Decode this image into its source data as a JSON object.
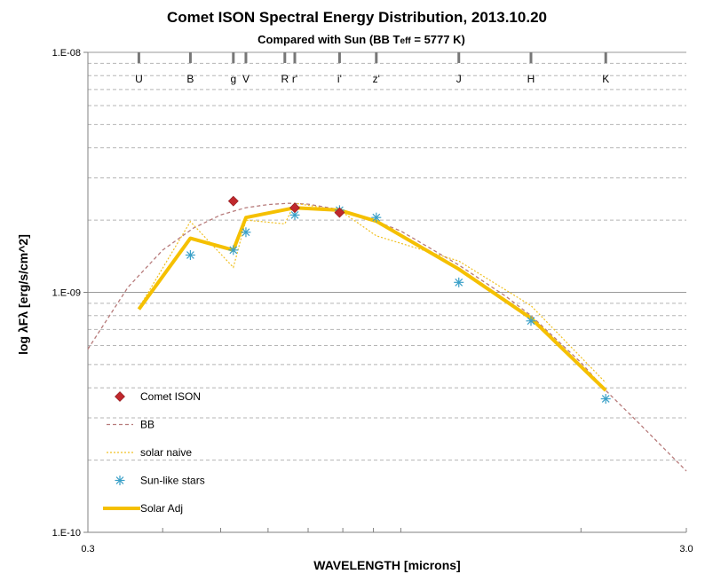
{
  "chart_data": {
    "type": "line",
    "title": "Comet ISON Spectral Energy Distribution,  2013.10.20",
    "subtitle": "Compared with Sun (BB Teff = 5777 K)",
    "subtitle_parts": [
      "Compared with Sun (BB T",
      "eff",
      " = 5777 K)"
    ],
    "xlabel": "WAVELENGTH [microns]",
    "ylabel": "log λFλ [erg/s/cm^2]",
    "x_scale": "log",
    "y_scale": "log",
    "xlim": [
      0.3,
      3.0
    ],
    "ylim": [
      1e-10,
      1e-08
    ],
    "x_tick_labels": [
      {
        "value": 0.3,
        "label": "0.3"
      },
      {
        "value": 3.0,
        "label": "3.0"
      }
    ],
    "y_tick_labels": [
      {
        "value": 1e-10,
        "label": "1.E-10"
      },
      {
        "value": 1e-09,
        "label": "1.E-09"
      },
      {
        "value": 1e-08,
        "label": "1.E-08"
      }
    ],
    "grid": "horizontal minor and major gridlines",
    "legend_position": "bottom-left",
    "bands": [
      {
        "label": "U",
        "x": 0.365
      },
      {
        "label": "B",
        "x": 0.445
      },
      {
        "label": "g",
        "x": 0.525
      },
      {
        "label": "V",
        "x": 0.551
      },
      {
        "label": "R",
        "x": 0.64
      },
      {
        "label": "r'",
        "x": 0.665
      },
      {
        "label": "i'",
        "x": 0.79
      },
      {
        "label": "z'",
        "x": 0.91
      },
      {
        "label": "J",
        "x": 1.25
      },
      {
        "label": "H",
        "x": 1.65
      },
      {
        "label": "K",
        "x": 2.2
      }
    ],
    "series": [
      {
        "name": "Comet ISON",
        "kind": "marker-diamond",
        "color": "#c0282d",
        "x": [
          0.525,
          0.665,
          0.79
        ],
        "y": [
          2.4e-09,
          2.25e-09,
          2.15e-09
        ]
      },
      {
        "name": "BB",
        "kind": "line-dashed",
        "color": "#b77b7b",
        "x": [
          0.3,
          0.35,
          0.4,
          0.45,
          0.5,
          0.55,
          0.6,
          0.65,
          0.7,
          0.8,
          0.9,
          1.0,
          1.25,
          1.5,
          1.65,
          2.0,
          2.2,
          2.5,
          3.0
        ],
        "y": [
          5.8e-10,
          1.05e-09,
          1.5e-09,
          1.85e-09,
          2.1e-09,
          2.25e-09,
          2.32e-09,
          2.35e-09,
          2.33e-09,
          2.2e-09,
          2e-09,
          1.8e-09,
          1.3e-09,
          9.6e-10,
          8e-10,
          5.1e-10,
          3.9e-10,
          2.85e-10,
          1.8e-10
        ]
      },
      {
        "name": "solar naive",
        "kind": "line-dotted",
        "color": "#f0c020",
        "x": [
          0.365,
          0.445,
          0.525,
          0.551,
          0.64,
          0.665,
          0.79,
          0.91,
          1.25,
          1.65,
          2.2
        ],
        "y": [
          8.6e-10,
          1.97e-09,
          1.27e-09,
          2e-09,
          1.93e-09,
          2.35e-09,
          2.2e-09,
          1.72e-09,
          1.35e-09,
          8.8e-10,
          4.2e-10
        ]
      },
      {
        "name": "Sun-like stars",
        "kind": "marker-star",
        "color": "#3aa0c8",
        "x": [
          0.445,
          0.525,
          0.551,
          0.665,
          0.79,
          0.91,
          1.25,
          1.65,
          2.2
        ],
        "y": [
          1.43e-09,
          1.5e-09,
          1.78e-09,
          2.1e-09,
          2.2e-09,
          2.05e-09,
          1.1e-09,
          7.6e-10,
          3.6e-10
        ]
      },
      {
        "name": "Solar Adj",
        "kind": "line-thick",
        "color": "#f5c000",
        "x": [
          0.365,
          0.445,
          0.525,
          0.551,
          0.665,
          0.79,
          0.91,
          1.25,
          1.65,
          2.2
        ],
        "y": [
          8.5e-10,
          1.68e-09,
          1.5e-09,
          2.05e-09,
          2.25e-09,
          2.2e-09,
          1.98e-09,
          1.25e-09,
          7.8e-10,
          3.9e-10
        ]
      }
    ]
  }
}
